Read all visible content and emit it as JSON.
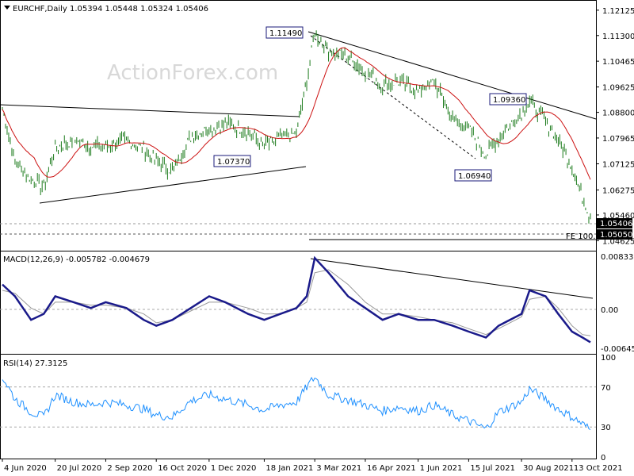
{
  "chart_data": {
    "type": "candlestick",
    "symbol_label": "EURCHF,Daily",
    "ohlc_header": "1.05394 1.05448 1.05324 1.05406",
    "watermark": "ActionForex.com",
    "x_tick_labels": [
      "4 Jun 2020",
      "20 Jul 2020",
      "2 Sep 2020",
      "16 Oct 2020",
      "1 Dec 2020",
      "18 Jan 2021",
      "3 Mar 2021",
      "16 Apr 2021",
      "1 Jun 2021",
      "15 Jul 2021",
      "30 Aug 2021",
      "13 Oct 2021"
    ],
    "price_axis": {
      "tick_labels": [
        "1.12125",
        "1.11300",
        "1.10465",
        "1.09625",
        "1.08800",
        "1.07965",
        "1.07125",
        "1.06275",
        "1.05460",
        "1.04625"
      ],
      "ylim": [
        1.044,
        1.1225
      ],
      "current_price": "1.05406",
      "fe_level": "1.05050"
    },
    "annotations": [
      {
        "label": "1.11490"
      },
      {
        "label": "1.09360"
      },
      {
        "label": "1.07370"
      },
      {
        "label": "1.06940"
      },
      {
        "label": "FE 100.0"
      }
    ],
    "close_series": [
      {
        "x": "2020-06-04",
        "y": 1.089
      },
      {
        "x": "2020-06-15",
        "y": 1.072
      },
      {
        "x": "2020-06-29",
        "y": 1.066
      },
      {
        "x": "2020-07-10",
        "y": 1.064
      },
      {
        "x": "2020-07-20",
        "y": 1.076
      },
      {
        "x": "2020-08-05",
        "y": 1.079
      },
      {
        "x": "2020-08-20",
        "y": 1.077
      },
      {
        "x": "2020-09-02",
        "y": 1.077
      },
      {
        "x": "2020-09-20",
        "y": 1.079
      },
      {
        "x": "2020-10-05",
        "y": 1.076
      },
      {
        "x": "2020-10-16",
        "y": 1.072
      },
      {
        "x": "2020-10-30",
        "y": 1.069
      },
      {
        "x": "2020-11-15",
        "y": 1.08
      },
      {
        "x": "2020-12-01",
        "y": 1.083
      },
      {
        "x": "2020-12-15",
        "y": 1.084
      },
      {
        "x": "2021-01-04",
        "y": 1.082
      },
      {
        "x": "2021-01-18",
        "y": 1.077
      },
      {
        "x": "2021-02-01",
        "y": 1.08
      },
      {
        "x": "2021-02-15",
        "y": 1.081
      },
      {
        "x": "2021-02-24",
        "y": 1.098
      },
      {
        "x": "2021-03-03",
        "y": 1.114
      },
      {
        "x": "2021-03-15",
        "y": 1.108
      },
      {
        "x": "2021-04-01",
        "y": 1.106
      },
      {
        "x": "2021-04-16",
        "y": 1.101
      },
      {
        "x": "2021-05-01",
        "y": 1.097
      },
      {
        "x": "2021-05-15",
        "y": 1.098
      },
      {
        "x": "2021-06-01",
        "y": 1.095
      },
      {
        "x": "2021-06-15",
        "y": 1.098
      },
      {
        "x": "2021-07-01",
        "y": 1.086
      },
      {
        "x": "2021-07-15",
        "y": 1.083
      },
      {
        "x": "2021-07-30",
        "y": 1.074
      },
      {
        "x": "2021-08-10",
        "y": 1.08
      },
      {
        "x": "2021-08-30",
        "y": 1.088
      },
      {
        "x": "2021-09-06",
        "y": 1.092
      },
      {
        "x": "2021-09-20",
        "y": 1.085
      },
      {
        "x": "2021-10-01",
        "y": 1.079
      },
      {
        "x": "2021-10-13",
        "y": 1.07
      },
      {
        "x": "2021-10-22",
        "y": 1.06
      },
      {
        "x": "2021-10-29",
        "y": 1.054
      }
    ],
    "macd_panel": {
      "label": "MACD(12,26,9) -0.005782 -0.004679",
      "tick_labels": [
        "0.008337",
        "0.00",
        "-0.006455"
      ],
      "ylim": [
        -0.0075,
        0.0092
      ],
      "macd": [
        0.004,
        0.002,
        -0.002,
        -0.001,
        0.002,
        0.001,
        0.0,
        0.001,
        0.0,
        -0.002,
        -0.003,
        -0.002,
        0.0,
        0.002,
        0.001,
        -0.001,
        -0.002,
        -0.001,
        0.0,
        0.002,
        0.0085,
        0.006,
        0.002,
        0.0,
        -0.002,
        -0.001,
        -0.002,
        -0.002,
        -0.003,
        -0.004,
        -0.005,
        -0.003,
        -0.001,
        0.003,
        0.002,
        -0.001,
        -0.004,
        -0.005,
        -0.0058
      ],
      "signal": [
        0.003,
        0.0025,
        0.0,
        -0.001,
        0.001,
        0.001,
        0.0005,
        0.0005,
        0.0,
        -0.001,
        -0.0025,
        -0.002,
        -0.0005,
        0.001,
        0.001,
        0.0,
        -0.001,
        -0.001,
        0.0,
        0.001,
        0.006,
        0.0065,
        0.004,
        0.001,
        -0.001,
        -0.001,
        -0.0015,
        -0.002,
        -0.0025,
        -0.0035,
        -0.0045,
        -0.0035,
        -0.0015,
        0.0015,
        0.002,
        0.0,
        -0.003,
        -0.0045,
        -0.0047
      ]
    },
    "rsi_panel": {
      "label": "RSI(14) 27.3125",
      "tick_labels": [
        "100",
        "70",
        "30",
        "0"
      ],
      "ylim": [
        0,
        100
      ],
      "values": [
        80,
        58,
        45,
        40,
        62,
        55,
        52,
        55,
        52,
        48,
        42,
        40,
        56,
        62,
        58,
        52,
        47,
        52,
        55,
        70,
        80,
        62,
        57,
        52,
        46,
        50,
        46,
        52,
        42,
        36,
        28,
        45,
        55,
        68,
        58,
        48,
        40,
        33,
        27.3
      ]
    }
  }
}
